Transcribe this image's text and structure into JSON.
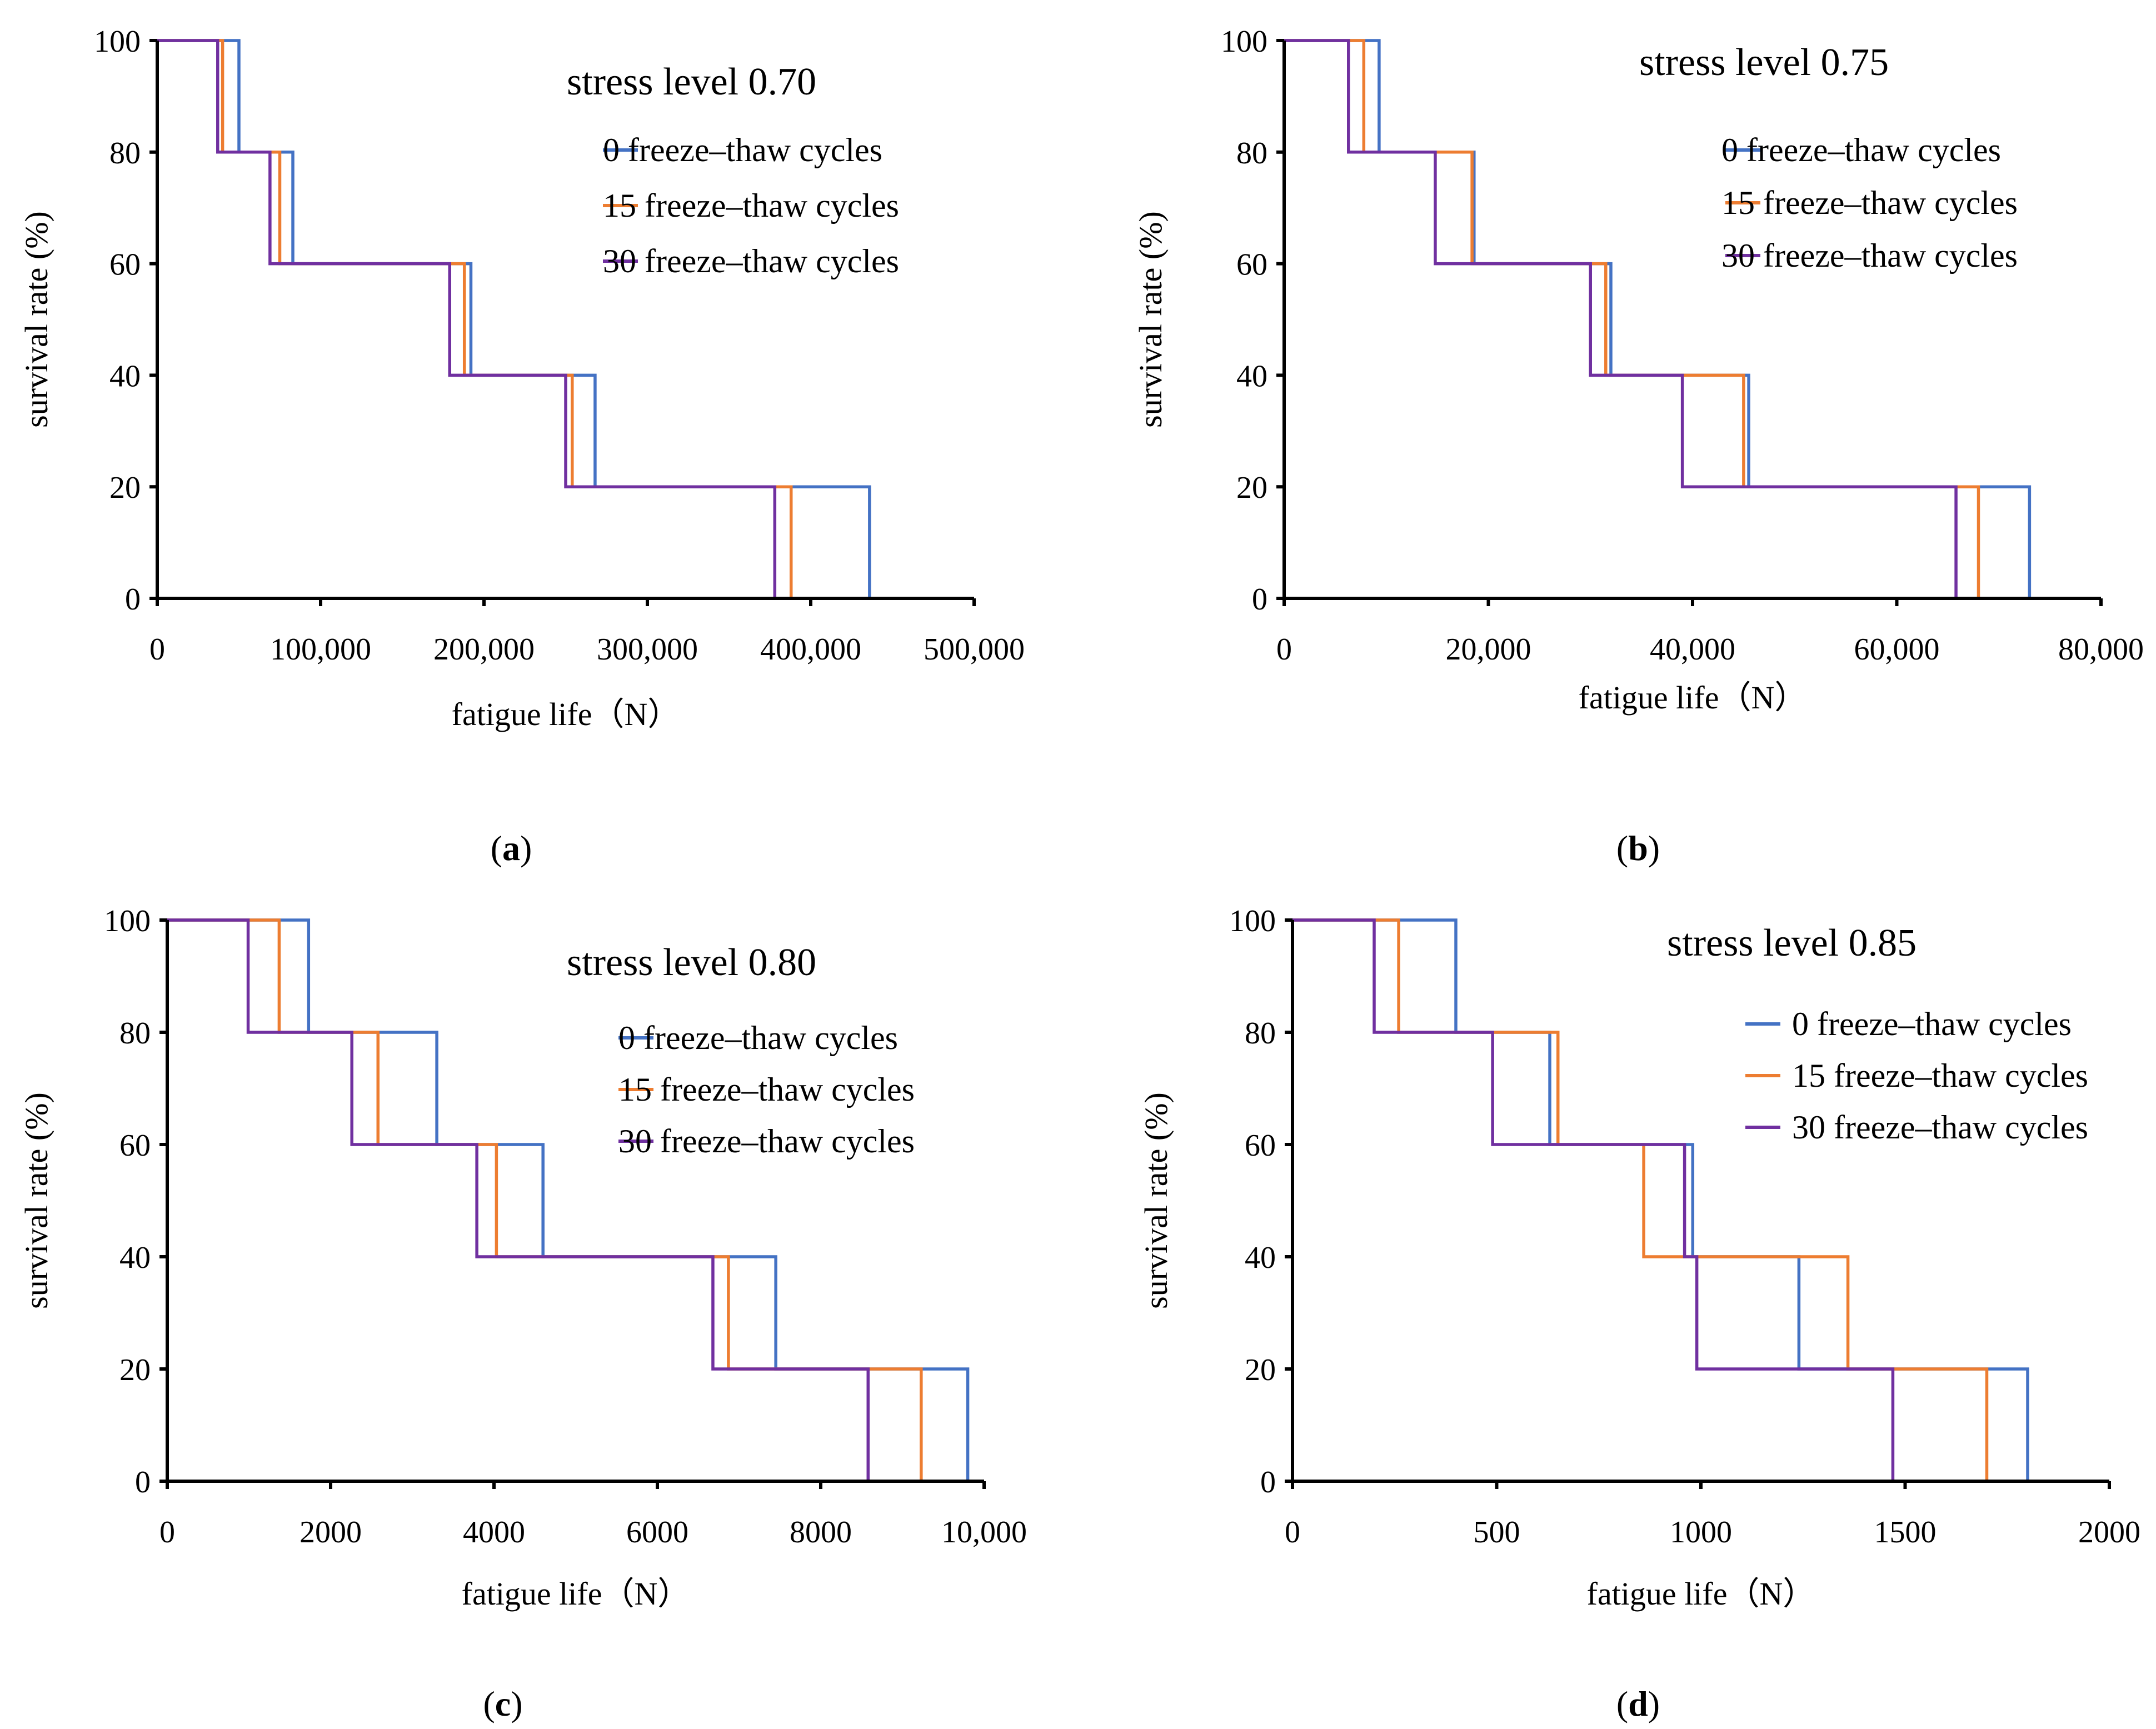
{
  "chart_data": [
    {
      "type": "line",
      "step": true,
      "panel_label": "a",
      "title": "stress level 0.70",
      "xlabel": "fatigue life（N）",
      "ylabel": "survival rate (%)",
      "xlim": [
        0,
        500000
      ],
      "ylim": [
        0,
        100
      ],
      "xticks": [
        0,
        100000,
        200000,
        300000,
        400000,
        500000
      ],
      "xtick_labels": [
        "0",
        "100,000",
        "200,000",
        "300,000",
        "400,000",
        "500,000"
      ],
      "yticks": [
        0,
        20,
        40,
        60,
        80,
        100
      ],
      "ytick_labels": [
        "0",
        "20",
        "40",
        "60",
        "80",
        "100"
      ],
      "legend_position": "top-right",
      "series": [
        {
          "name": "0 freeze–thaw cycles",
          "color": "#4472C4",
          "failure_lives": [
            50000,
            83000,
            192000,
            268000,
            436000
          ]
        },
        {
          "name": "15 freeze–thaw cycles",
          "color": "#ED7D31",
          "failure_lives": [
            40000,
            75000,
            188000,
            254000,
            388000
          ]
        },
        {
          "name": "30 freeze–thaw cycles",
          "color": "#7030A0",
          "failure_lives": [
            37000,
            69000,
            179000,
            250000,
            378000
          ]
        }
      ]
    },
    {
      "type": "line",
      "step": true,
      "panel_label": "b",
      "title": "stress level 0.75",
      "xlabel": "fatigue life（N）",
      "ylabel": "survival rate (%)",
      "xlim": [
        0,
        80000
      ],
      "ylim": [
        0,
        100
      ],
      "xticks": [
        0,
        20000,
        40000,
        60000,
        80000
      ],
      "xtick_labels": [
        "0",
        "20,000",
        "40,000",
        "60,000",
        "80,000"
      ],
      "yticks": [
        0,
        20,
        40,
        60,
        80,
        100
      ],
      "ytick_labels": [
        "0",
        "20",
        "40",
        "60",
        "80",
        "100"
      ],
      "legend_position": "top-right",
      "series": [
        {
          "name": "0 freeze–thaw cycles",
          "color": "#4472C4",
          "failure_lives": [
            9300,
            18600,
            32000,
            45500,
            73000
          ]
        },
        {
          "name": "15 freeze–thaw cycles",
          "color": "#ED7D31",
          "failure_lives": [
            7800,
            18400,
            31500,
            45000,
            68000
          ]
        },
        {
          "name": "30 freeze–thaw cycles",
          "color": "#7030A0",
          "failure_lives": [
            6300,
            14800,
            30000,
            39000,
            65800
          ]
        }
      ]
    },
    {
      "type": "line",
      "step": true,
      "panel_label": "c",
      "title": "stress level 0.80",
      "xlabel": "fatigue life（N）",
      "ylabel": "survival rate (%)",
      "xlim": [
        0,
        10000
      ],
      "ylim": [
        0,
        100
      ],
      "xticks": [
        0,
        2000,
        4000,
        6000,
        8000,
        10000
      ],
      "xtick_labels": [
        "0",
        "2000",
        "4000",
        "6000",
        "8000",
        "10,000"
      ],
      "yticks": [
        0,
        20,
        40,
        60,
        80,
        100
      ],
      "ytick_labels": [
        "0",
        "20",
        "40",
        "60",
        "80",
        "100"
      ],
      "legend_position": "top-right",
      "series": [
        {
          "name": "0 freeze–thaw cycles",
          "color": "#4472C4",
          "failure_lives": [
            1730,
            3300,
            4600,
            7450,
            9800
          ]
        },
        {
          "name": "15 freeze–thaw cycles",
          "color": "#ED7D31",
          "failure_lives": [
            1370,
            2580,
            4030,
            6870,
            9230
          ]
        },
        {
          "name": "30 freeze–thaw cycles",
          "color": "#7030A0",
          "failure_lives": [
            990,
            2260,
            3790,
            6680,
            8580
          ]
        }
      ]
    },
    {
      "type": "line",
      "step": true,
      "panel_label": "d",
      "title": "stress level 0.85",
      "xlabel": "fatigue life（N）",
      "ylabel": "survival rate (%)",
      "xlim": [
        0,
        2000
      ],
      "ylim": [
        0,
        100
      ],
      "xticks": [
        0,
        500,
        1000,
        1500,
        2000
      ],
      "xtick_labels": [
        "0",
        "500",
        "1000",
        "1500",
        "2000"
      ],
      "yticks": [
        0,
        20,
        40,
        60,
        80,
        100
      ],
      "ytick_labels": [
        "0",
        "20",
        "40",
        "60",
        "80",
        "100"
      ],
      "legend_position": "top-right",
      "series": [
        {
          "name": "0 freeze–thaw cycles",
          "color": "#4472C4",
          "failure_lives": [
            400,
            630,
            980,
            1240,
            1800
          ]
        },
        {
          "name": "15 freeze–thaw cycles",
          "color": "#ED7D31",
          "failure_lives": [
            260,
            650,
            860,
            1360,
            1700
          ]
        },
        {
          "name": "30 freeze–thaw cycles",
          "color": "#7030A0",
          "failure_lives": [
            200,
            490,
            960,
            990,
            1470
          ]
        }
      ]
    }
  ]
}
